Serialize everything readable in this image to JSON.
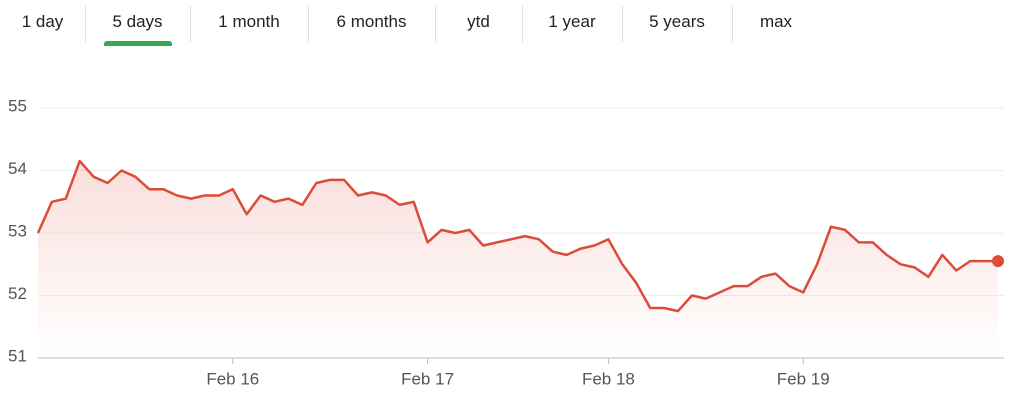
{
  "tabs": {
    "items": [
      "1 day",
      "5 days",
      "1 month",
      "6 months",
      "ytd",
      "1 year",
      "5 years",
      "max"
    ],
    "selected": 1
  },
  "chart_data": {
    "type": "line",
    "categories": [
      null,
      null,
      null,
      null,
      null,
      null,
      null,
      null,
      null,
      null,
      null,
      null,
      null,
      null,
      "Feb 16",
      null,
      null,
      null,
      null,
      null,
      null,
      null,
      null,
      null,
      null,
      null,
      null,
      null,
      "Feb 17",
      null,
      null,
      null,
      null,
      null,
      null,
      null,
      null,
      null,
      null,
      null,
      null,
      "Feb 18",
      null,
      null,
      null,
      null,
      null,
      null,
      null,
      null,
      null,
      null,
      null,
      null,
      null,
      "Feb 19",
      null,
      null,
      null,
      null,
      null,
      null,
      null,
      null,
      null,
      null,
      null,
      null,
      null,
      null
    ],
    "series": [
      {
        "color": "#dd4b39",
        "values": [
          53.0,
          53.5,
          53.55,
          54.15,
          53.9,
          53.8,
          54.0,
          53.9,
          53.7,
          53.7,
          53.6,
          53.55,
          53.6,
          53.6,
          53.7,
          53.3,
          53.6,
          53.5,
          53.55,
          53.45,
          53.8,
          53.85,
          53.85,
          53.6,
          53.65,
          53.6,
          53.45,
          53.5,
          52.85,
          53.05,
          53.0,
          53.05,
          52.8,
          52.85,
          52.9,
          52.95,
          52.9,
          52.7,
          52.65,
          52.75,
          52.8,
          52.9,
          52.5,
          52.2,
          51.8,
          51.8,
          51.75,
          52.0,
          51.95,
          52.05,
          52.15,
          52.15,
          52.3,
          52.35,
          52.15,
          52.05,
          52.5,
          53.1,
          53.05,
          52.85,
          52.85,
          52.65,
          52.5,
          52.45,
          52.3,
          52.65,
          52.4,
          52.55,
          52.55,
          52.55
        ]
      }
    ],
    "ylim": [
      51,
      55
    ],
    "yticks": [
      51,
      52,
      53,
      54,
      55
    ],
    "grid": true
  }
}
